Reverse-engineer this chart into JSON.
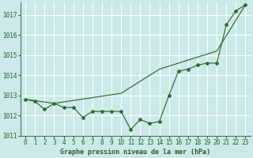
{
  "xlabel": "Graphe pression niveau de la mer (hPa)",
  "background_color": "#cce9e9",
  "grid_color": "#aed4d4",
  "line_color": "#2d6b2d",
  "spine_color": "#4a7a4a",
  "tick_color": "#2d5a2d",
  "ylim": [
    1011,
    1017.6
  ],
  "yticks": [
    1011,
    1012,
    1013,
    1014,
    1015,
    1016,
    1017
  ],
  "xlim": [
    -0.5,
    23.5
  ],
  "xticks": [
    0,
    1,
    2,
    3,
    4,
    5,
    6,
    7,
    8,
    9,
    10,
    11,
    12,
    13,
    14,
    15,
    16,
    17,
    18,
    19,
    20,
    21,
    22,
    23
  ],
  "series1": [
    1012.8,
    1012.7,
    1012.3,
    1012.6,
    1012.4,
    1012.4,
    1011.9,
    1012.2,
    1012.2,
    1012.2,
    1012.2,
    1011.3,
    1011.8,
    1011.6,
    1011.7,
    1013.0,
    1014.2,
    1014.3,
    1014.5,
    1014.6,
    1014.6,
    1016.5,
    1017.2,
    1017.5
  ],
  "series2_x": [
    0,
    3,
    10,
    14,
    20,
    23
  ],
  "series2_y": [
    1012.8,
    1012.6,
    1013.1,
    1014.3,
    1015.2,
    1017.5
  ],
  "tick_fontsize": 5.5,
  "xlabel_fontsize": 6.0
}
